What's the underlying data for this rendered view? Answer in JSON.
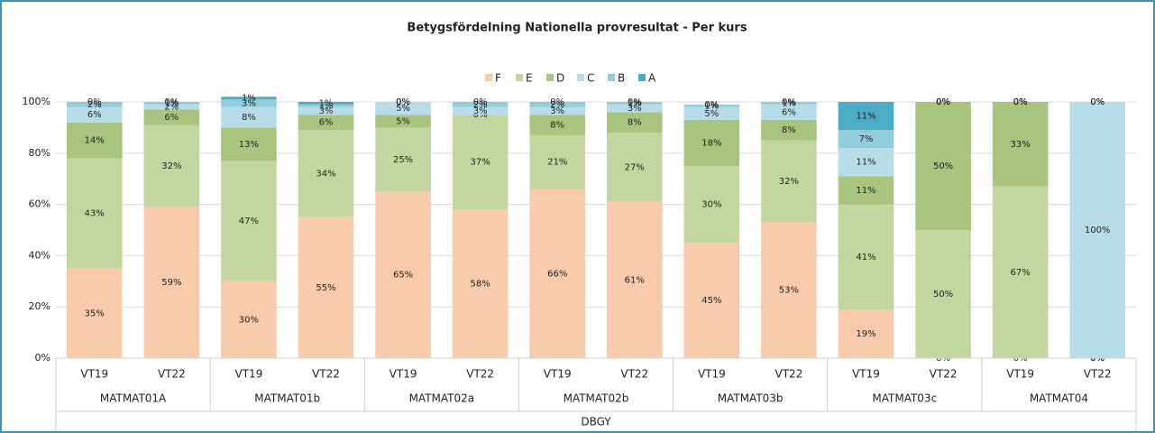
{
  "chart_data": {
    "type": "stacked_bar_100",
    "title": "Betygsfördelning Nationella provresultat - Per kurs",
    "categories": [
      "VT19",
      "VT22",
      "VT19",
      "VT22",
      "VT19",
      "VT22",
      "VT19",
      "VT22",
      "VT19",
      "VT22",
      "VT19",
      "VT22",
      "VT19",
      "VT22"
    ],
    "groups": [
      "MATMAT01A",
      "MATMAT01b",
      "MATMAT02a",
      "MATMAT02b",
      "MATMAT03b",
      "MATMAT03c",
      "MATMAT04"
    ],
    "outer_group": "DBGY",
    "ylim": [
      0,
      100
    ],
    "yticks": [
      {
        "value": 0,
        "label": "0%"
      },
      {
        "value": 20,
        "label": "20%"
      },
      {
        "value": 40,
        "label": "40%"
      },
      {
        "value": 60,
        "label": "60%"
      },
      {
        "value": 80,
        "label": "80%"
      },
      {
        "value": 100,
        "label": "100%"
      }
    ],
    "grid": true,
    "legend": "top",
    "series": [
      {
        "name": "F",
        "color": "#f8cbad",
        "values": [
          35,
          59,
          30,
          55,
          65,
          58,
          66,
          61,
          45,
          53,
          19,
          0,
          0,
          0
        ],
        "value_labels": [
          "35%",
          "59%",
          "30%",
          "55%",
          "65%",
          "58%",
          "66%",
          "61%",
          "45%",
          "53%",
          "19%",
          "0%",
          "0%",
          "0%"
        ]
      },
      {
        "name": "E",
        "color": "#c4d6a0",
        "values": [
          43,
          32,
          47,
          34,
          25,
          37,
          21,
          27,
          30,
          32,
          41,
          50,
          67,
          0
        ],
        "value_labels": [
          "43%",
          "32%",
          "47%",
          "34%",
          "25%",
          "37%",
          "21%",
          "27%",
          "30%",
          "32%",
          "41%",
          "50%",
          "67%",
          "0%"
        ]
      },
      {
        "name": "D",
        "color": "#a9c47f",
        "values": [
          14,
          6,
          13,
          6,
          5,
          0,
          8,
          8,
          18,
          8,
          11,
          50,
          33,
          0
        ],
        "value_labels": [
          "14%",
          "6%",
          "13%",
          "6%",
          "5%",
          "0%",
          "8%",
          "8%",
          "18%",
          "8%",
          "11%",
          "50%",
          "33%",
          "0%"
        ]
      },
      {
        "name": "C",
        "color": "#b7dee8",
        "values": [
          6,
          2,
          8,
          3,
          5,
          3,
          3,
          3,
          5,
          6,
          11,
          0,
          0,
          100
        ],
        "value_labels": [
          "6%",
          "2%",
          "8%",
          "3%",
          "5%",
          "3%",
          "3%",
          "3%",
          "5%",
          "6%",
          "11%",
          "0%",
          "0%",
          "100%"
        ]
      },
      {
        "name": "B",
        "color": "#92cddc",
        "values": [
          2,
          1,
          3,
          1,
          0,
          2,
          2,
          1,
          1,
          1,
          7,
          0,
          0,
          0
        ],
        "value_labels": [
          "2%",
          "1%",
          "3%",
          "1%",
          "0%",
          "2%",
          "2%",
          "1%",
          "1%",
          "1%",
          "7%",
          "0%",
          "0%",
          "0%"
        ]
      },
      {
        "name": "A",
        "color": "#4bacc6",
        "values": [
          0,
          0,
          1,
          1,
          0,
          0,
          0,
          0,
          0,
          0,
          11,
          0,
          0,
          0
        ],
        "value_labels": [
          "0%",
          "0%",
          "1%",
          "1%",
          "0%",
          "0%",
          "0%",
          "0%",
          "0%",
          "0%",
          "11%",
          "0%",
          "0%",
          "0%"
        ]
      }
    ]
  }
}
